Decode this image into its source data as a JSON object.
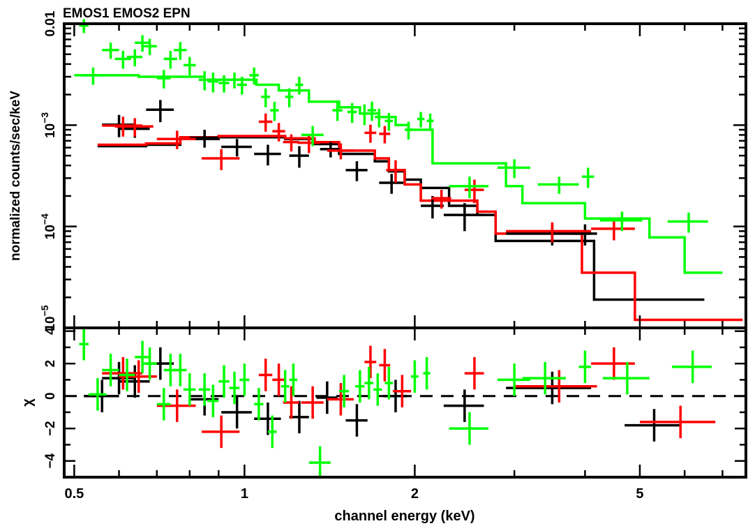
{
  "header": {
    "title": "EMOS1 EMOS2 EPN"
  },
  "axes": {
    "xlabel": "channel energy (keV)",
    "upper_ylabel": "normalized counts/sec/keV",
    "lower_ylabel": "χ",
    "x_tick_labels": [
      "0.5",
      "1",
      "2",
      "5"
    ],
    "upper_tick_labels": [
      {
        "mant": "0.01",
        "exp": ""
      },
      {
        "mant": "10",
        "exp": "−3"
      },
      {
        "mant": "10",
        "exp": "−4"
      },
      {
        "mant": "10",
        "exp": "−5"
      }
    ],
    "lower_tick_labels": [
      "4",
      "2",
      "0",
      "−2",
      "−4"
    ]
  },
  "chart_data": [
    {
      "type": "scatter",
      "panel": "spectrum",
      "title": "EMOS1 EMOS2 EPN",
      "xlabel": "channel energy (keV)",
      "ylabel": "normalized counts/sec/keV",
      "xscale": "log",
      "yscale": "log",
      "xlim": [
        0.48,
        7.7
      ],
      "ylim": [
        1e-05,
        0.01
      ],
      "series": [
        {
          "color": "#000000",
          "points": [
            [
              0.6,
              0.00101,
              0.04,
              0.00025
            ],
            [
              0.64,
              0.00092,
              0.04,
              0.00017
            ],
            [
              0.71,
              0.00142,
              0.04,
              0.00035
            ],
            [
              0.85,
              0.00075,
              0.05,
              0.00015
            ],
            [
              0.97,
              0.00061,
              0.06,
              0.00012
            ],
            [
              1.1,
              0.00052,
              0.06,
              0.00012
            ],
            [
              1.25,
              0.0005,
              0.05,
              0.00012
            ],
            [
              1.42,
              0.00058,
              0.06,
              0.0001
            ],
            [
              1.58,
              0.00036,
              0.07,
              8e-05
            ],
            [
              1.82,
              0.00027,
              0.09,
              6e-05
            ],
            [
              2.15,
              0.00016,
              0.1,
              4e-05
            ],
            [
              2.45,
              0.00013,
              0.2,
              4e-05
            ],
            [
              3.5,
              8.5e-05,
              0.6,
              2e-05
            ],
            [
              4.0,
              8.5e-05,
              0.2,
              2e-05
            ]
          ],
          "model": [
            [
              0.55,
              0.00062
            ],
            [
              0.67,
              0.00064
            ],
            [
              0.77,
              0.00073
            ],
            [
              0.9,
              0.00076
            ],
            [
              1.05,
              0.00076
            ],
            [
              1.18,
              0.00073
            ],
            [
              1.33,
              0.00065
            ],
            [
              1.47,
              0.00052
            ],
            [
              1.7,
              0.00044
            ],
            [
              1.8,
              0.00035
            ],
            [
              1.92,
              0.00029
            ],
            [
              2.05,
              0.00024
            ],
            [
              2.3,
              0.00016
            ],
            [
              2.58,
              0.00013
            ],
            [
              2.78,
              7.2e-05
            ],
            [
              4.15,
              1.9e-05
            ],
            [
              6.5,
              1.9e-05
            ]
          ]
        },
        {
          "color": "#ff0000",
          "points": [
            [
              0.61,
              0.00099,
              0.05,
              0.00022
            ],
            [
              0.64,
              0.00097,
              0.05,
              0.0002
            ],
            [
              0.76,
              0.00073,
              0.06,
              0.00015
            ],
            [
              0.91,
              0.00047,
              0.07,
              0.00011
            ],
            [
              1.09,
              0.00108,
              0.03,
              0.00022
            ],
            [
              1.15,
              0.00087,
              0.03,
              0.00018
            ],
            [
              1.21,
              0.00068,
              0.04,
              0.00013
            ],
            [
              1.3,
              0.00067,
              0.06,
              0.00014
            ],
            [
              1.48,
              0.00056,
              0.08,
              0.0001
            ],
            [
              1.67,
              0.00084,
              0.04,
              0.00017
            ],
            [
              1.77,
              0.00082,
              0.04,
              0.00016
            ],
            [
              1.85,
              0.00036,
              0.07,
              9e-05
            ],
            [
              2.23,
              0.00019,
              0.09,
              4e-05
            ],
            [
              2.55,
              0.00023,
              0.1,
              6e-05
            ],
            [
              3.5,
              9e-05,
              0.6,
              2e-05
            ],
            [
              4.5,
              9.5e-05,
              0.4,
              2.2e-05
            ]
          ],
          "model": [
            [
              0.55,
              0.00064
            ],
            [
              0.67,
              0.00066
            ],
            [
              0.77,
              0.00076
            ],
            [
              0.9,
              0.00078
            ],
            [
              1.05,
              0.00078
            ],
            [
              1.18,
              0.00074
            ],
            [
              1.33,
              0.00068
            ],
            [
              1.47,
              0.00056
            ],
            [
              1.7,
              0.00047
            ],
            [
              1.8,
              0.00036
            ],
            [
              1.92,
              0.00026
            ],
            [
              2.05,
              0.00018
            ],
            [
              2.58,
              0.00014
            ],
            [
              2.78,
              8.5e-05
            ],
            [
              3.95,
              3.5e-05
            ],
            [
              4.9,
              1.2e-05
            ],
            [
              7.6,
              1.2e-05
            ]
          ]
        },
        {
          "color": "#00ff00",
          "points": [
            [
              0.52,
              0.0096,
              0.01,
              0.0015
            ],
            [
              0.54,
              0.0031,
              0.02,
              0.0006
            ],
            [
              0.58,
              0.0055,
              0.02,
              0.001
            ],
            [
              0.61,
              0.0045,
              0.02,
              0.0009
            ],
            [
              0.64,
              0.0047,
              0.02,
              0.0009
            ],
            [
              0.66,
              0.0065,
              0.02,
              0.0012
            ],
            [
              0.68,
              0.006,
              0.02,
              0.0011
            ],
            [
              0.72,
              0.0029,
              0.02,
              0.0006
            ],
            [
              0.74,
              0.0045,
              0.02,
              0.0009
            ],
            [
              0.77,
              0.0055,
              0.02,
              0.0011
            ],
            [
              0.8,
              0.0039,
              0.02,
              0.0008
            ],
            [
              0.85,
              0.0028,
              0.02,
              0.0006
            ],
            [
              0.88,
              0.0027,
              0.02,
              0.0006
            ],
            [
              0.92,
              0.0026,
              0.02,
              0.0005
            ],
            [
              0.96,
              0.0028,
              0.02,
              0.0005
            ],
            [
              0.99,
              0.0025,
              0.02,
              0.0005
            ],
            [
              1.04,
              0.0031,
              0.02,
              0.0006
            ],
            [
              1.09,
              0.0019,
              0.02,
              0.0004
            ],
            [
              1.13,
              0.0014,
              0.02,
              0.0003
            ],
            [
              1.2,
              0.0019,
              0.02,
              0.0004
            ],
            [
              1.25,
              0.0025,
              0.02,
              0.0005
            ],
            [
              1.32,
              0.0008,
              0.06,
              0.00018
            ],
            [
              1.46,
              0.0014,
              0.03,
              0.0003
            ],
            [
              1.55,
              0.00135,
              0.03,
              0.0003
            ],
            [
              1.63,
              0.0013,
              0.03,
              0.0003
            ],
            [
              1.68,
              0.0014,
              0.03,
              0.0003
            ],
            [
              1.73,
              0.0012,
              0.03,
              0.00025
            ],
            [
              1.8,
              0.0011,
              0.03,
              0.00022
            ],
            [
              1.95,
              0.0009,
              0.03,
              0.00018
            ],
            [
              2.05,
              0.00115,
              0.03,
              0.0002
            ],
            [
              2.13,
              0.0011,
              0.03,
              0.0002
            ],
            [
              2.5,
              0.00025,
              0.2,
              6e-05
            ],
            [
              3.0,
              0.00038,
              0.2,
              8e-05
            ],
            [
              3.6,
              0.00026,
              0.3,
              5e-05
            ],
            [
              4.05,
              0.00031,
              0.1,
              7e-05
            ],
            [
              4.65,
              0.000115,
              0.4,
              2.5e-05
            ],
            [
              6.1,
              0.000112,
              0.5,
              2.5e-05
            ]
          ],
          "model": [
            [
              0.5,
              0.0031
            ],
            [
              0.65,
              0.003
            ],
            [
              0.85,
              0.0028
            ],
            [
              1.05,
              0.0025
            ],
            [
              1.15,
              0.0022
            ],
            [
              1.3,
              0.0017
            ],
            [
              1.47,
              0.0015
            ],
            [
              1.6,
              0.0013
            ],
            [
              1.73,
              0.0012
            ],
            [
              1.85,
              0.001
            ],
            [
              1.95,
              0.0009
            ],
            [
              2.15,
              0.00042
            ],
            [
              2.9,
              0.00025
            ],
            [
              3.1,
              0.00017
            ],
            [
              4.0,
              0.00012
            ],
            [
              5.2,
              7.8e-05
            ],
            [
              6.0,
              3.5e-05
            ],
            [
              7.0,
              3.5e-05
            ]
          ]
        }
      ]
    },
    {
      "type": "scatter",
      "panel": "residuals",
      "xlabel": "channel energy (keV)",
      "ylabel": "χ",
      "xscale": "log",
      "xlim": [
        0.48,
        7.7
      ],
      "ylim": [
        -5,
        4.2
      ],
      "zero_line": true,
      "series": [
        {
          "color": "#000000",
          "points": [
            [
              0.56,
              0.0,
              0.04,
              1.0
            ],
            [
              0.6,
              1.1,
              0.04,
              1.0
            ],
            [
              0.64,
              0.9,
              0.04,
              1.0
            ],
            [
              0.71,
              2.0,
              0.04,
              1.0
            ],
            [
              0.85,
              -0.2,
              0.05,
              1.0
            ],
            [
              0.97,
              -1.0,
              0.06,
              1.0
            ],
            [
              1.1,
              -1.4,
              0.06,
              1.0
            ],
            [
              1.25,
              -1.3,
              0.05,
              1.0
            ],
            [
              1.4,
              -0.1,
              0.06,
              1.0
            ],
            [
              1.58,
              -1.5,
              0.07,
              1.0
            ],
            [
              1.85,
              0.0,
              0.09,
              1.0
            ],
            [
              2.45,
              -0.6,
              0.2,
              1.0
            ],
            [
              3.5,
              0.5,
              0.6,
              1.0
            ],
            [
              5.3,
              -1.8,
              0.6,
              1.0
            ]
          ]
        },
        {
          "color": "#ff0000",
          "points": [
            [
              0.61,
              1.4,
              0.05,
              1.0
            ],
            [
              0.65,
              1.2,
              0.05,
              1.0
            ],
            [
              0.76,
              -0.6,
              0.06,
              1.0
            ],
            [
              0.91,
              -2.2,
              0.07,
              1.0
            ],
            [
              1.09,
              1.3,
              0.03,
              1.0
            ],
            [
              1.15,
              1.0,
              0.03,
              1.0
            ],
            [
              1.21,
              -0.4,
              0.04,
              1.0
            ],
            [
              1.32,
              -0.4,
              0.06,
              1.0
            ],
            [
              1.48,
              -0.2,
              0.08,
              1.0
            ],
            [
              1.67,
              2.1,
              0.04,
              1.0
            ],
            [
              1.77,
              1.9,
              0.04,
              1.0
            ],
            [
              1.9,
              0.3,
              0.07,
              1.0
            ],
            [
              2.55,
              1.4,
              0.1,
              1.0
            ],
            [
              3.6,
              0.6,
              0.6,
              1.0
            ],
            [
              4.5,
              2.0,
              0.4,
              1.0
            ],
            [
              5.9,
              -1.6,
              0.9,
              1.0
            ]
          ]
        },
        {
          "color": "#00ff00",
          "points": [
            [
              0.52,
              3.2,
              0.01,
              1.0
            ],
            [
              0.55,
              0.1,
              0.02,
              1.0
            ],
            [
              0.58,
              1.6,
              0.02,
              1.0
            ],
            [
              0.62,
              1.3,
              0.02,
              1.0
            ],
            [
              0.66,
              2.4,
              0.02,
              1.0
            ],
            [
              0.68,
              2.0,
              0.02,
              1.0
            ],
            [
              0.72,
              -0.5,
              0.02,
              1.0
            ],
            [
              0.74,
              1.6,
              0.02,
              1.0
            ],
            [
              0.77,
              1.6,
              0.02,
              1.0
            ],
            [
              0.8,
              0.4,
              0.02,
              1.0
            ],
            [
              0.85,
              0.4,
              0.02,
              1.0
            ],
            [
              0.88,
              -0.3,
              0.02,
              1.0
            ],
            [
              0.92,
              0.9,
              0.02,
              1.0
            ],
            [
              0.96,
              0.5,
              0.02,
              1.0
            ],
            [
              1.0,
              1.0,
              0.02,
              1.0
            ],
            [
              1.06,
              -0.5,
              0.02,
              1.0
            ],
            [
              1.12,
              -2.2,
              0.02,
              1.0
            ],
            [
              1.18,
              0.6,
              0.02,
              1.0
            ],
            [
              1.22,
              1.0,
              0.02,
              1.0
            ],
            [
              1.36,
              -4.1,
              0.06,
              1.0
            ],
            [
              1.5,
              0.3,
              0.03,
              1.0
            ],
            [
              1.6,
              0.6,
              0.03,
              1.0
            ],
            [
              1.66,
              0.8,
              0.03,
              1.0
            ],
            [
              1.72,
              0.4,
              0.03,
              1.0
            ],
            [
              1.8,
              0.8,
              0.03,
              1.0
            ],
            [
              2.0,
              1.2,
              0.03,
              1.0
            ],
            [
              2.1,
              1.4,
              0.03,
              1.0
            ],
            [
              2.5,
              -2.0,
              0.2,
              1.0
            ],
            [
              3.0,
              1.0,
              0.2,
              1.0
            ],
            [
              3.4,
              1.1,
              0.3,
              1.0
            ],
            [
              4.0,
              1.8,
              0.1,
              1.0
            ],
            [
              4.75,
              1.1,
              0.45,
              1.0
            ],
            [
              6.2,
              1.8,
              0.5,
              1.0
            ]
          ]
        }
      ]
    }
  ]
}
